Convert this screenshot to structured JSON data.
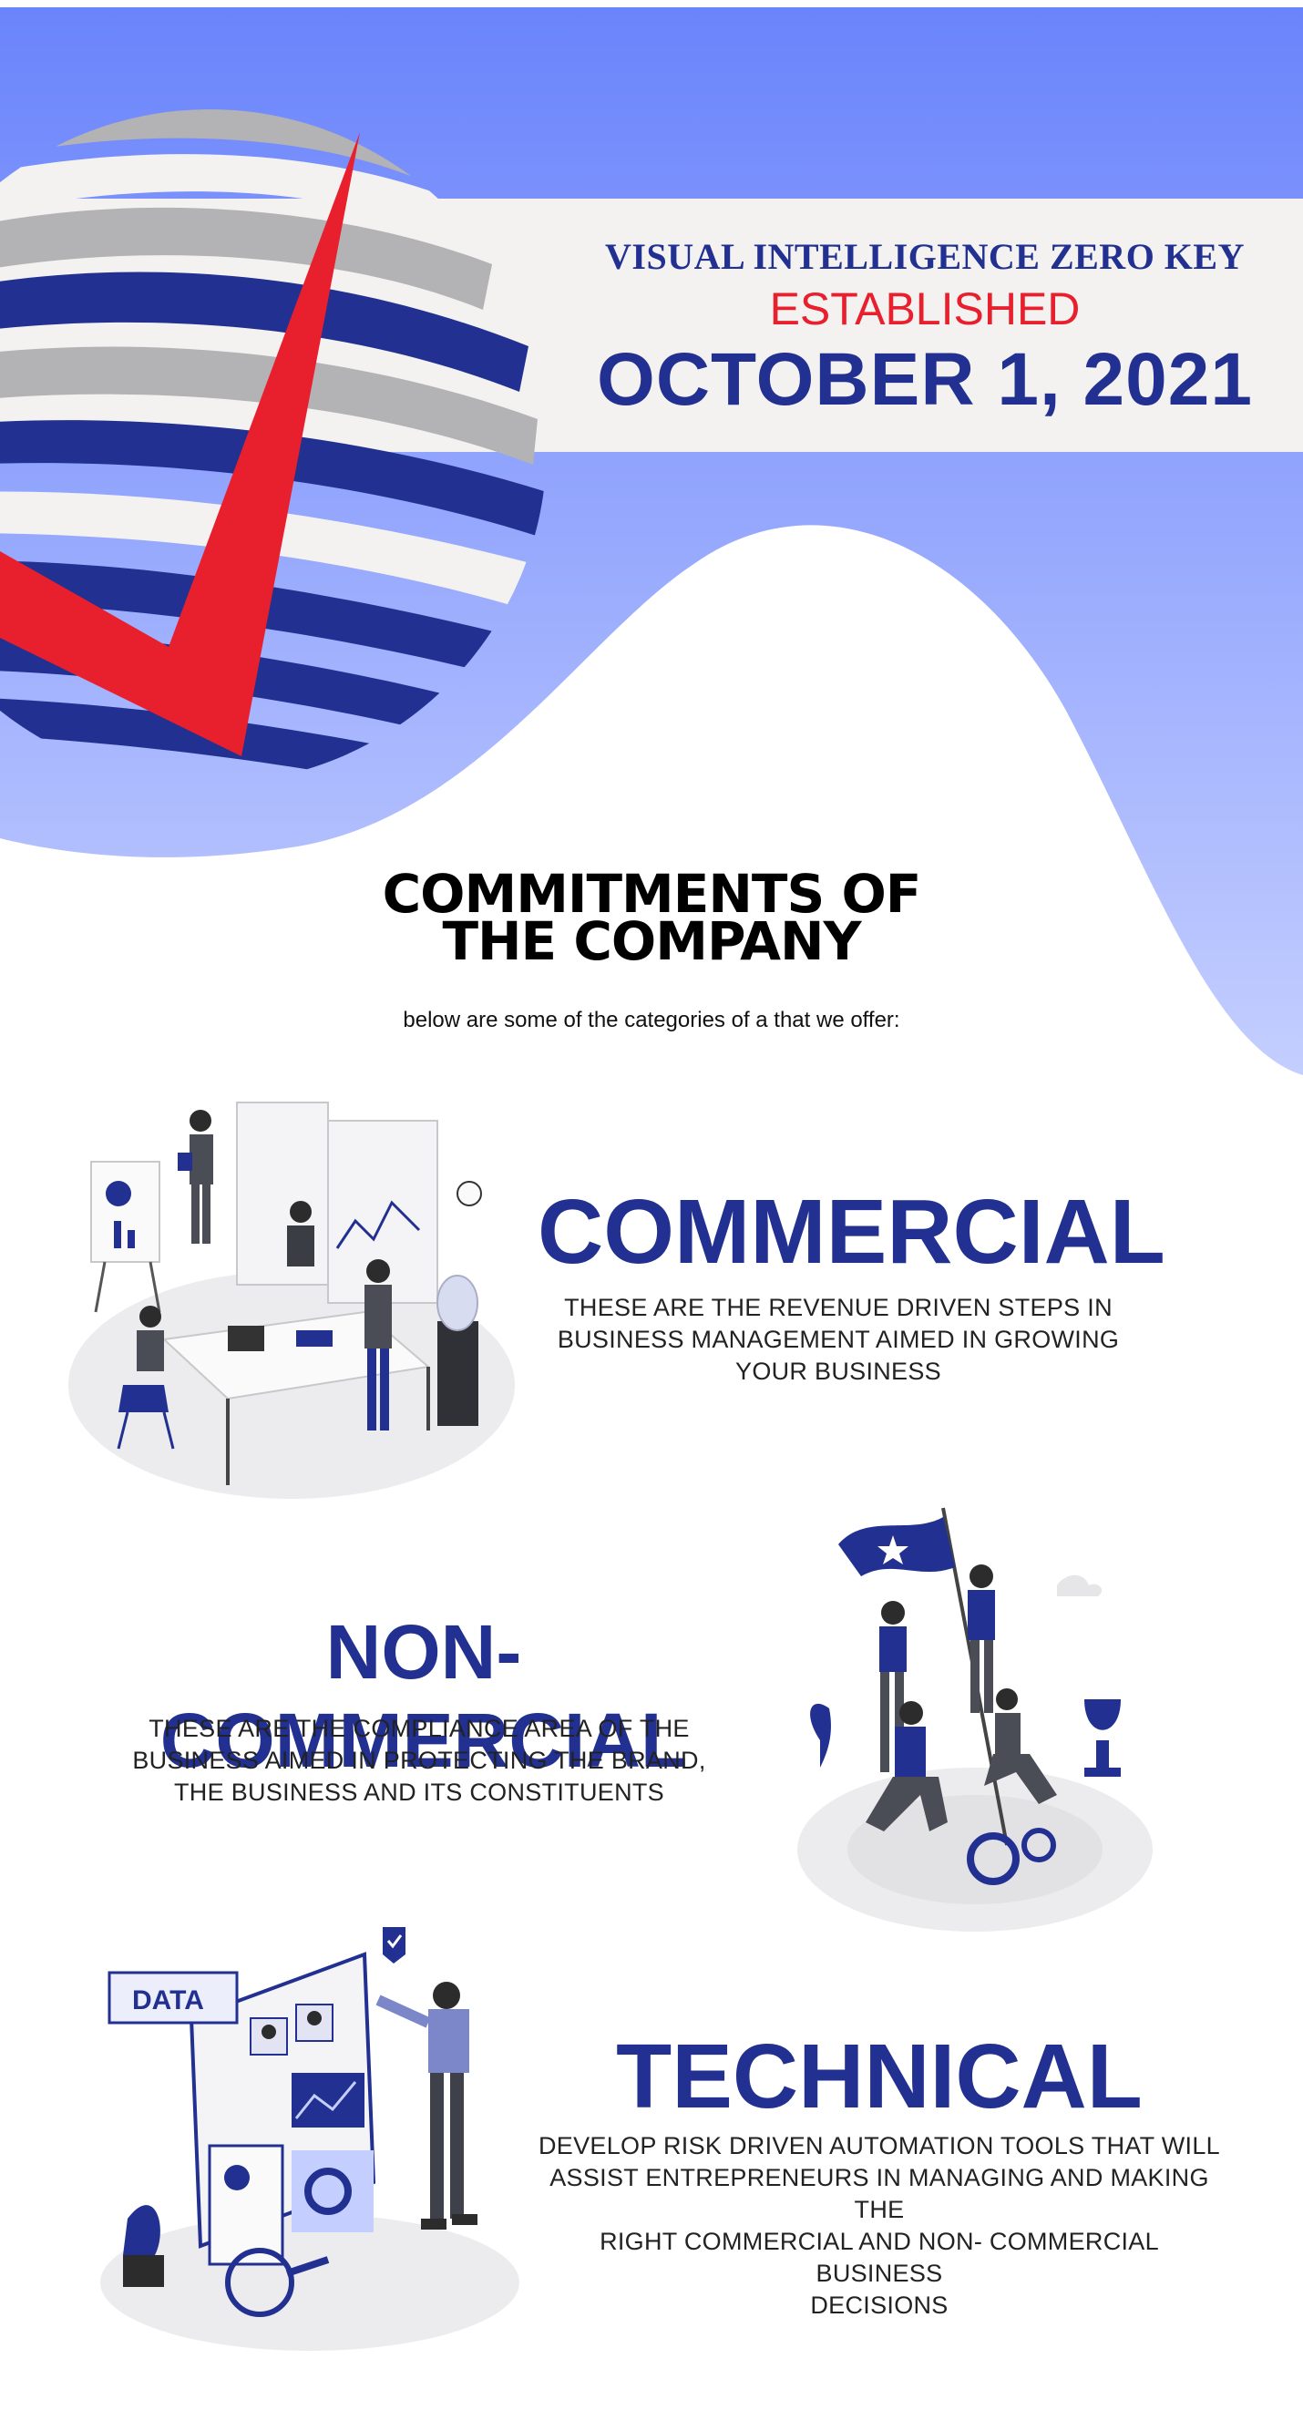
{
  "banner": {
    "company_name": "VISUAL INTELLIGENCE ZERO KEY",
    "established_label": "ESTABLISHED",
    "established_date": "OCTOBER 1, 2021"
  },
  "section": {
    "title_line1": "COMMITMENTS OF",
    "title_line2": "THE COMPANY",
    "subtitle": "below are some of the categories of a that we offer:"
  },
  "categories": [
    {
      "title": "COMMERCIAL",
      "desc_lines": [
        "THESE ARE THE REVENUE DRIVEN STEPS IN",
        "BUSINESS MANAGEMENT AIMED IN GROWING",
        "YOUR BUSINESS"
      ]
    },
    {
      "title": "NON-COMMERCIAL",
      "desc_lines": [
        "THESE ARE THE COMPLIANCE AREA OF THE",
        "BUSINESS AIMED IN PROTECTING THE BRAND,",
        "THE BUSINESS AND ITS CONSTITUENTS"
      ]
    },
    {
      "title": "TECHNICAL",
      "desc_lines": [
        "DEVELOP RISK DRIVEN AUTOMATION TOOLS THAT WILL",
        "ASSIST ENTREPRENEURS IN MANAGING AND MAKING THE",
        "RIGHT COMMERCIAL AND NON- COMMERCIAL BUSINESS",
        "DECISIONS"
      ]
    }
  ],
  "illustration_labels": {
    "data_tag": "DATA"
  },
  "colors": {
    "navy": "#223191",
    "red": "#e8202e",
    "hero_top": "#6a84fb",
    "hero_bottom": "#c4ceff",
    "banner_strip": "#f3f2f1"
  }
}
